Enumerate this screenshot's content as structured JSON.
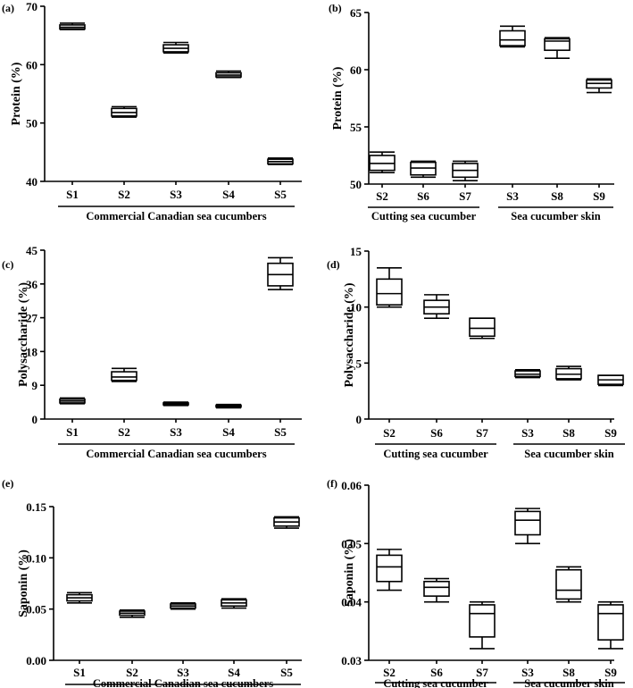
{
  "chart_data": [
    {
      "panel_label": "(a)",
      "type": "box",
      "ylabel": "Protein (%)",
      "ylim": [
        40,
        70
      ],
      "yticks": [
        40,
        50,
        60,
        70
      ],
      "categories": [
        "S1",
        "S2",
        "S3",
        "S4",
        "S5"
      ],
      "groups": [
        {
          "label": "Commercial Canadian sea cucumbers",
          "from": 0,
          "to": 4
        }
      ],
      "boxes": [
        {
          "min": 66.0,
          "q1": 66.1,
          "median": 66.4,
          "q3": 66.8,
          "max": 67.1
        },
        {
          "min": 51.0,
          "q1": 51.2,
          "median": 51.8,
          "q3": 52.5,
          "max": 52.8
        },
        {
          "min": 62.0,
          "q1": 62.2,
          "median": 62.8,
          "q3": 63.4,
          "max": 63.8
        },
        {
          "min": 57.8,
          "q1": 57.9,
          "median": 58.2,
          "q3": 58.6,
          "max": 58.9
        },
        {
          "min": 42.9,
          "q1": 43.0,
          "median": 43.4,
          "q3": 43.8,
          "max": 44.0
        }
      ]
    },
    {
      "panel_label": "(b)",
      "type": "box",
      "ylabel": "Protein (%)",
      "ylim": [
        50,
        65
      ],
      "yticks": [
        50,
        55,
        60,
        65
      ],
      "categories": [
        "S2",
        "S6",
        "S7",
        "S3",
        "S8",
        "S9"
      ],
      "groups": [
        {
          "label": "Cutting sea cucumber",
          "from": 0,
          "to": 2
        },
        {
          "label": "Sea cucumber skin",
          "from": 3,
          "to": 5
        }
      ],
      "boxes": [
        {
          "min": 51.0,
          "q1": 51.2,
          "median": 51.8,
          "q3": 52.5,
          "max": 52.8
        },
        {
          "min": 50.6,
          "q1": 50.8,
          "median": 51.4,
          "q3": 51.9,
          "max": 52.0
        },
        {
          "min": 50.3,
          "q1": 50.6,
          "median": 51.2,
          "q3": 51.8,
          "max": 52.0
        },
        {
          "min": 62.0,
          "q1": 62.1,
          "median": 62.6,
          "q3": 63.4,
          "max": 63.8
        },
        {
          "min": 61.0,
          "q1": 61.7,
          "median": 62.5,
          "q3": 62.7,
          "max": 62.8
        },
        {
          "min": 58.0,
          "q1": 58.4,
          "median": 58.8,
          "q3": 59.1,
          "max": 59.2
        }
      ]
    },
    {
      "panel_label": "(c)",
      "type": "box",
      "ylabel": "Polysaccharide (%)",
      "ylim": [
        0,
        45
      ],
      "yticks": [
        0,
        9,
        18,
        27,
        36,
        45
      ],
      "categories": [
        "S1",
        "S2",
        "S3",
        "S4",
        "S5"
      ],
      "groups": [
        {
          "label": "Commercial Canadian sea cucumbers",
          "from": 0,
          "to": 4
        }
      ],
      "boxes": [
        {
          "min": 4.1,
          "q1": 4.3,
          "median": 4.8,
          "q3": 5.3,
          "max": 5.6
        },
        {
          "min": 10.0,
          "q1": 10.3,
          "median": 11.2,
          "q3": 12.6,
          "max": 13.5
        },
        {
          "min": 3.6,
          "q1": 3.8,
          "median": 4.0,
          "q3": 4.3,
          "max": 4.5
        },
        {
          "min": 3.0,
          "q1": 3.2,
          "median": 3.4,
          "q3": 3.7,
          "max": 3.9
        },
        {
          "min": 34.5,
          "q1": 35.5,
          "median": 38.5,
          "q3": 41.5,
          "max": 43.0
        }
      ]
    },
    {
      "panel_label": "(d)",
      "type": "box",
      "ylabel": "Polysaccharide (%)",
      "ylim": [
        0,
        15
      ],
      "yticks": [
        0,
        5,
        10,
        15
      ],
      "categories": [
        "S2",
        "S6",
        "S7",
        "S3",
        "S8",
        "S9"
      ],
      "groups": [
        {
          "label": "Cutting sea cucumber",
          "from": 0,
          "to": 2
        },
        {
          "label": "Sea cucumber skin",
          "from": 3,
          "to": 5
        }
      ],
      "boxes": [
        {
          "min": 10.0,
          "q1": 10.2,
          "median": 11.2,
          "q3": 12.5,
          "max": 13.5
        },
        {
          "min": 9.0,
          "q1": 9.4,
          "median": 10.0,
          "q3": 10.6,
          "max": 11.1
        },
        {
          "min": 7.2,
          "q1": 7.4,
          "median": 8.1,
          "q3": 9.0,
          "max": 9.0
        },
        {
          "min": 3.7,
          "q1": 3.8,
          "median": 4.0,
          "q3": 4.3,
          "max": 4.4
        },
        {
          "min": 3.5,
          "q1": 3.6,
          "median": 4.0,
          "q3": 4.5,
          "max": 4.7
        },
        {
          "min": 3.0,
          "q1": 3.1,
          "median": 3.5,
          "q3": 3.9,
          "max": 3.9
        }
      ]
    },
    {
      "panel_label": "(e)",
      "type": "box",
      "ylabel": "Saponin (%)",
      "ylim": [
        0,
        0.15
      ],
      "yticks": [
        "0.00",
        "0.05",
        "0.10",
        "0.15"
      ],
      "categories": [
        "S1",
        "S2",
        "S3",
        "S4",
        "S5"
      ],
      "groups": [
        {
          "label": "Commercial Canadian sea cucumbers",
          "from": 0,
          "to": 4
        }
      ],
      "boxes": [
        {
          "min": 0.056,
          "q1": 0.058,
          "median": 0.061,
          "q3": 0.064,
          "max": 0.066
        },
        {
          "min": 0.042,
          "q1": 0.044,
          "median": 0.046,
          "q3": 0.048,
          "max": 0.049
        },
        {
          "min": 0.05,
          "q1": 0.051,
          "median": 0.053,
          "q3": 0.055,
          "max": 0.056
        },
        {
          "min": 0.051,
          "q1": 0.053,
          "median": 0.056,
          "q3": 0.059,
          "max": 0.06
        },
        {
          "min": 0.129,
          "q1": 0.131,
          "median": 0.135,
          "q3": 0.139,
          "max": 0.14
        }
      ]
    },
    {
      "panel_label": "(f)",
      "type": "box",
      "ylabel": "Saponin (%)",
      "ylim": [
        0.03,
        0.06
      ],
      "yticks": [
        "0.03",
        "0.04",
        "0.05",
        "0.06"
      ],
      "categories": [
        "S2",
        "S6",
        "S7",
        "S3",
        "S8",
        "S9"
      ],
      "groups": [
        {
          "label": "Cutting sea cucumber",
          "from": 0,
          "to": 2
        },
        {
          "label": "Sea cucumber skin",
          "from": 3,
          "to": 5
        }
      ],
      "boxes": [
        {
          "min": 0.042,
          "q1": 0.0435,
          "median": 0.046,
          "q3": 0.048,
          "max": 0.049
        },
        {
          "min": 0.04,
          "q1": 0.041,
          "median": 0.0425,
          "q3": 0.0435,
          "max": 0.044
        },
        {
          "min": 0.032,
          "q1": 0.034,
          "median": 0.038,
          "q3": 0.0395,
          "max": 0.04
        },
        {
          "min": 0.05,
          "q1": 0.0515,
          "median": 0.054,
          "q3": 0.0555,
          "max": 0.056
        },
        {
          "min": 0.04,
          "q1": 0.0405,
          "median": 0.042,
          "q3": 0.0455,
          "max": 0.046
        },
        {
          "min": 0.032,
          "q1": 0.0335,
          "median": 0.038,
          "q3": 0.0395,
          "max": 0.04
        }
      ]
    }
  ]
}
